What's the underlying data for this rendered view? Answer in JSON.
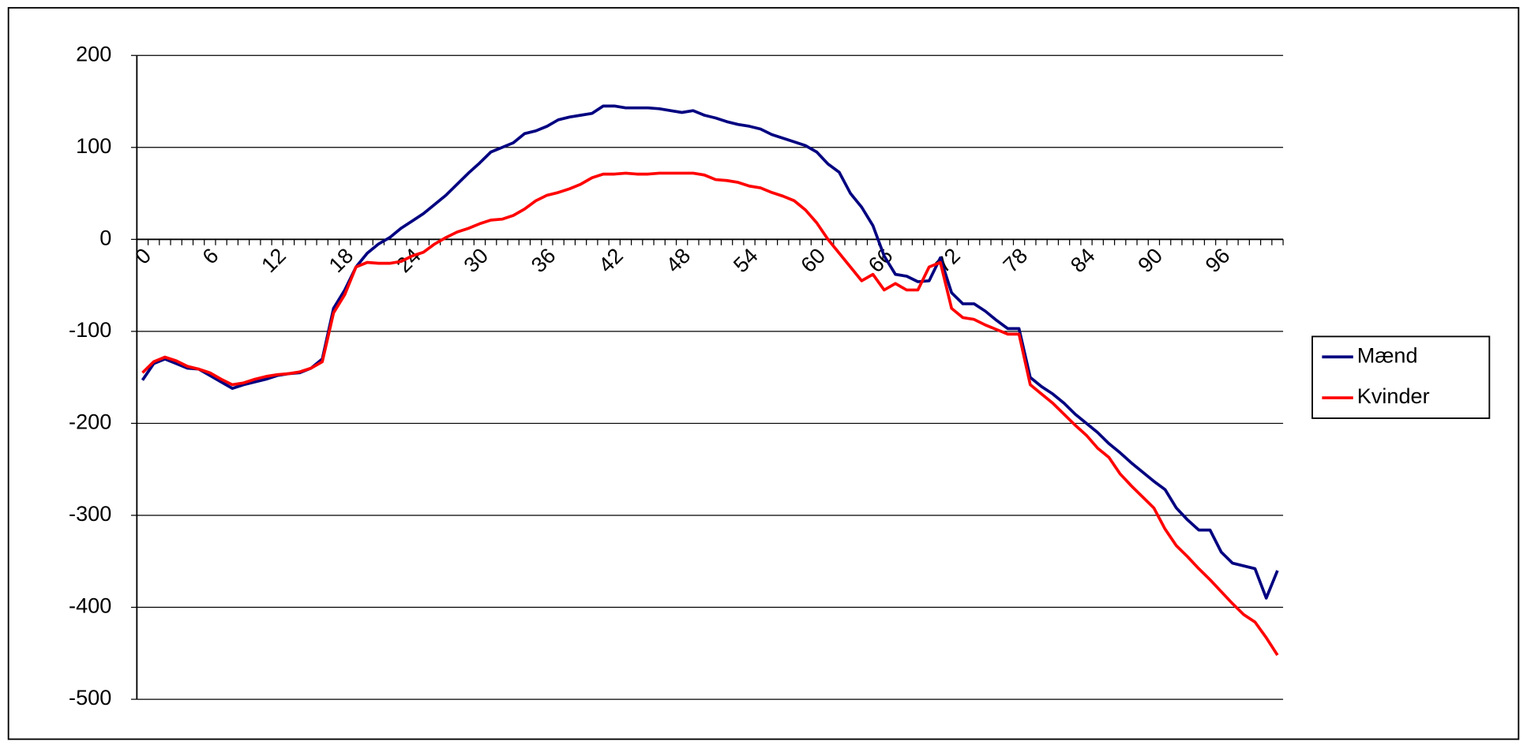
{
  "chart_data": {
    "type": "line",
    "categories": [
      "0",
      null,
      null,
      null,
      null,
      null,
      "6",
      null,
      null,
      null,
      null,
      null,
      "12",
      null,
      null,
      null,
      null,
      null,
      "18",
      null,
      null,
      null,
      null,
      null,
      "24",
      null,
      null,
      null,
      null,
      null,
      "30",
      null,
      null,
      null,
      null,
      null,
      "36",
      null,
      null,
      null,
      null,
      null,
      "42",
      null,
      null,
      null,
      null,
      null,
      "48",
      null,
      null,
      null,
      null,
      null,
      "54",
      null,
      null,
      null,
      null,
      null,
      "60",
      null,
      null,
      null,
      null,
      null,
      "66",
      null,
      null,
      null,
      null,
      null,
      "72",
      null,
      null,
      null,
      null,
      null,
      "78",
      null,
      null,
      null,
      null,
      null,
      "84",
      null,
      null,
      null,
      null,
      null,
      "90",
      null,
      null,
      null,
      null,
      null,
      "96",
      null,
      null,
      null,
      null,
      null
    ],
    "series": [
      {
        "name": "Mænd",
        "color": "#000080",
        "values": [
          -153,
          -135,
          -130,
          -135,
          -140,
          -141,
          -148,
          -155,
          -162,
          -158,
          -155,
          -152,
          -148,
          -146,
          -145,
          -140,
          -130,
          -75,
          -55,
          -30,
          -15,
          -5,
          2,
          12,
          20,
          28,
          38,
          48,
          60,
          72,
          83,
          95,
          100,
          105,
          115,
          118,
          123,
          130,
          133,
          135,
          137,
          145,
          145,
          143,
          143,
          143,
          142,
          140,
          138,
          140,
          135,
          132,
          128,
          125,
          123,
          120,
          114,
          110,
          106,
          102,
          95,
          82,
          73,
          50,
          35,
          15,
          -18,
          -38,
          -40,
          -46,
          -45,
          -20,
          -58,
          -70,
          -70,
          -78,
          -88,
          -97,
          -97,
          -150,
          -160,
          -168,
          -178,
          -190,
          -200,
          -210,
          -222,
          -232,
          -243,
          -253,
          -263,
          -272,
          -292,
          -305,
          -316,
          -316,
          -340,
          -352,
          -355,
          -358,
          -390,
          -360
        ]
      },
      {
        "name": "Kvinder",
        "color": "#ff0000",
        "values": [
          -145,
          -133,
          -128,
          -132,
          -138,
          -141,
          -145,
          -152,
          -158,
          -156,
          -152,
          -149,
          -147,
          -146,
          -144,
          -140,
          -133,
          -80,
          -60,
          -30,
          -25,
          -26,
          -26,
          -24,
          -18,
          -14,
          -5,
          2,
          8,
          12,
          17,
          21,
          22,
          26,
          33,
          42,
          48,
          51,
          55,
          60,
          67,
          71,
          71,
          72,
          71,
          71,
          72,
          72,
          72,
          72,
          70,
          65,
          64,
          62,
          58,
          56,
          51,
          47,
          42,
          32,
          18,
          0,
          -15,
          -30,
          -45,
          -38,
          -55,
          -48,
          -55,
          -55,
          -30,
          -25,
          -75,
          -85,
          -87,
          -93,
          -98,
          -103,
          -103,
          -158,
          -168,
          -178,
          -190,
          -202,
          -213,
          -227,
          -237,
          -255,
          -268,
          -280,
          -292,
          -315,
          -333,
          -345,
          -358,
          -370,
          -383,
          -396,
          -408,
          -416,
          -433,
          -452
        ]
      }
    ],
    "ylim": [
      -500,
      200
    ],
    "yticks": [
      200,
      100,
      0,
      -100,
      -200,
      -300,
      -400,
      -500
    ],
    "grid": true,
    "legend": "right"
  }
}
